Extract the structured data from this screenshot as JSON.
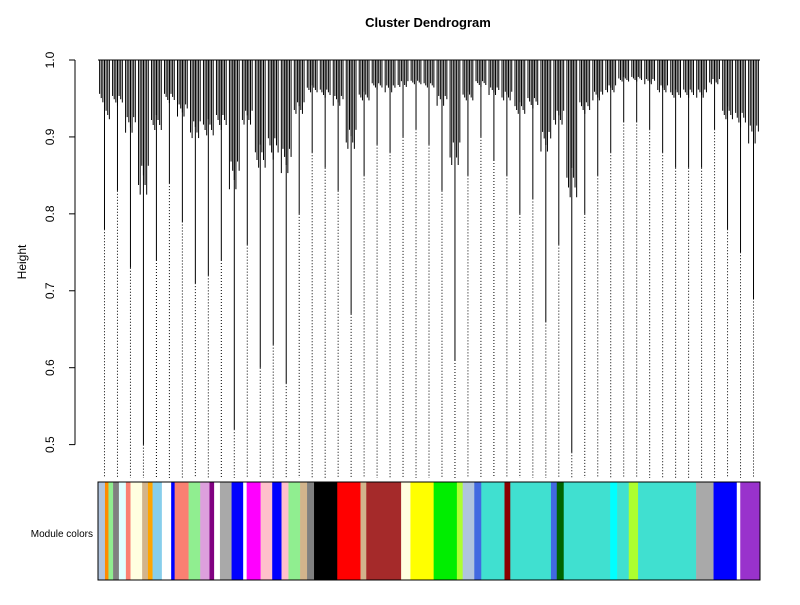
{
  "chart_data": {
    "type": "dendrogram",
    "title": "Cluster Dendrogram",
    "y_label": "Height",
    "ylim": [
      0.48,
      1.0
    ],
    "yticks": [
      {
        "value": 0.5,
        "label": "0.5"
      },
      {
        "value": 0.6,
        "label": "0.6"
      },
      {
        "value": 0.7,
        "label": "0.7"
      },
      {
        "value": 0.8,
        "label": "0.8"
      },
      {
        "value": 0.9,
        "label": "0.9"
      },
      {
        "value": 1.0,
        "label": "1.0"
      }
    ],
    "branch_heights": [
      0.78,
      0.83,
      0.73,
      0.5,
      0.74,
      0.84,
      0.79,
      0.71,
      0.72,
      0.74,
      0.52,
      0.76,
      0.6,
      0.63,
      0.58,
      0.8,
      0.88,
      0.86,
      0.83,
      0.67,
      0.85,
      0.89,
      0.88,
      0.9,
      0.91,
      0.89,
      0.83,
      0.61,
      0.85,
      0.9,
      0.87,
      0.85,
      0.8,
      0.82,
      0.66,
      0.76,
      0.49,
      0.8,
      0.85,
      0.88,
      0.92,
      0.92,
      0.91,
      0.88,
      0.86,
      0.86,
      0.86,
      0.91,
      0.78,
      0.75,
      0.69
    ],
    "color_label": "Module colors",
    "module_colors": [
      "lightsteelblue",
      "darkorange",
      "lightgreen",
      "grey",
      "lightcyan",
      "salmon",
      "lightyellow",
      "tan",
      "orange",
      "skyblue",
      "white",
      "blue",
      "salmon",
      "lightgreen",
      "plum",
      "purple",
      "white",
      "darkgrey",
      "blue",
      "white",
      "magenta",
      "pink",
      "blue",
      "pink",
      "lightgreen",
      "tan",
      "grey",
      "black",
      "red",
      "tan",
      "brown",
      "lightyellow",
      "yellow",
      "#00ee00",
      "greenyellow",
      "lightsteelblue",
      "royalblue",
      "turquoise",
      "darkred",
      "turquoise",
      "royalblue",
      "darkgreen",
      "turquoise",
      "cyan",
      "turquoise",
      "greenyellow",
      "turquoise",
      "darkgrey",
      "blue",
      "white",
      "darkorchid"
    ],
    "module_sizes": [
      6,
      3,
      4,
      5,
      6,
      4,
      10,
      5,
      4,
      8,
      8,
      3,
      12,
      10,
      8,
      4,
      5,
      10,
      10,
      3,
      12,
      10,
      8,
      6,
      10,
      6,
      6,
      20,
      20,
      5,
      30,
      8,
      20,
      20,
      5,
      10,
      6,
      20,
      5,
      35,
      5,
      6,
      40,
      6,
      10,
      8,
      50,
      15,
      20,
      3,
      17
    ]
  }
}
